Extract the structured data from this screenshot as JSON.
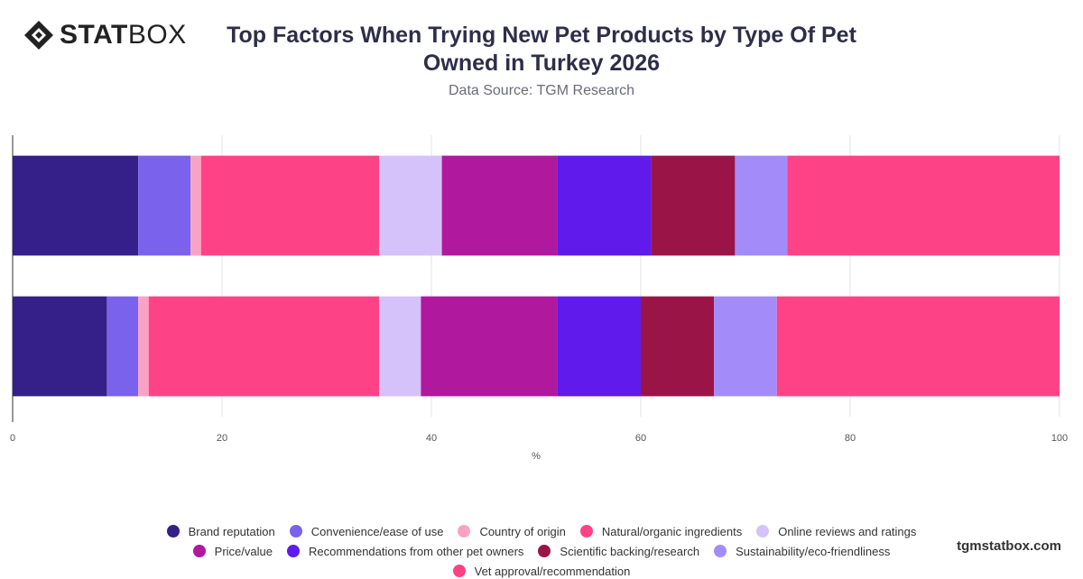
{
  "logo": {
    "bold_text": "STAT",
    "light_text": "BOX"
  },
  "title": "Top Factors When Trying New Pet Products by Type Of Pet Owned in Turkey 2026",
  "subtitle": "Data Source: TGM Research",
  "website": "tgmstatbox.com",
  "chart_data": {
    "type": "bar",
    "orientation": "horizontal",
    "stacked": true,
    "xlabel": "%",
    "ylabel": "",
    "xlim": [
      0,
      100
    ],
    "x_ticks": [
      "0",
      "20",
      "40",
      "60",
      "80",
      "100"
    ],
    "grid": "vertical",
    "legend_position": "bottom",
    "categories": [
      "",
      ""
    ],
    "series": [
      {
        "name": "Brand reputation",
        "color": "#35208a",
        "values": [
          12,
          9
        ]
      },
      {
        "name": "Convenience/ease of use",
        "color": "#7b62ec",
        "values": [
          5,
          3
        ]
      },
      {
        "name": "Country of origin",
        "color": "#f9a3c4",
        "values": [
          1,
          1
        ]
      },
      {
        "name": "Natural/organic ingredients",
        "color": "#fd4386",
        "values": [
          17,
          22
        ]
      },
      {
        "name": "Online reviews and ratings",
        "color": "#d5c2fb",
        "values": [
          6,
          4
        ]
      },
      {
        "name": "Price/value",
        "color": "#b0189e",
        "values": [
          11,
          13
        ]
      },
      {
        "name": "Recommendations from other pet owners",
        "color": "#601aeb",
        "values": [
          9,
          8
        ]
      },
      {
        "name": "Scientific backing/research",
        "color": "#9b1448",
        "values": [
          8,
          7
        ]
      },
      {
        "name": "Sustainability/eco-friendliness",
        "color": "#a38cfa",
        "values": [
          5,
          6
        ]
      },
      {
        "name": "Vet approval/recommendation",
        "color": "#fd4386",
        "values": [
          26,
          27
        ]
      }
    ]
  }
}
